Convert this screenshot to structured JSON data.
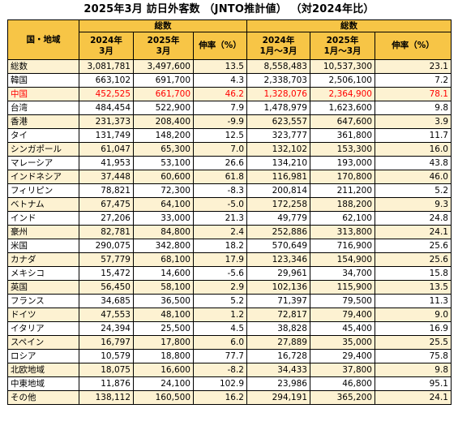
{
  "title": "2025年3月 訪日外客数 （JNTO推計値） （対2024年比）",
  "headers": {
    "region": "国・地域",
    "total": "総数",
    "col_2024_mar_line1": "2024年",
    "col_2024_mar_line2": "3月",
    "col_2025_mar_line1": "2025年",
    "col_2025_mar_line2": "3月",
    "growth": "伸率（%）",
    "col_2024_ytd_line1": "2024年",
    "col_2024_ytd_line2": "1月～3月",
    "col_2025_ytd_line1": "2025年",
    "col_2025_ytd_line2": "1月～3月"
  },
  "rows": [
    [
      "総数",
      "3,081,781",
      "3,497,600",
      "13.5",
      "8,558,483",
      "10,537,300",
      "23.1"
    ],
    [
      "韓国",
      "663,102",
      "691,700",
      "4.3",
      "2,338,703",
      "2,506,100",
      "7.2"
    ],
    [
      "中国",
      "452,525",
      "661,700",
      "46.2",
      "1,328,076",
      "2,364,900",
      "78.1"
    ],
    [
      "台湾",
      "484,454",
      "522,900",
      "7.9",
      "1,478,979",
      "1,623,600",
      "9.8"
    ],
    [
      "香港",
      "231,373",
      "208,400",
      "-9.9",
      "623,557",
      "647,600",
      "3.9"
    ],
    [
      "タイ",
      "131,749",
      "148,200",
      "12.5",
      "323,777",
      "361,800",
      "11.7"
    ],
    [
      "シンガポール",
      "61,047",
      "65,300",
      "7.0",
      "132,102",
      "153,300",
      "16.0"
    ],
    [
      "マレーシア",
      "41,953",
      "53,100",
      "26.6",
      "134,210",
      "193,000",
      "43.8"
    ],
    [
      "インドネシア",
      "37,448",
      "60,600",
      "61.8",
      "116,981",
      "170,800",
      "46.0"
    ],
    [
      "フィリピン",
      "78,821",
      "72,300",
      "-8.3",
      "200,814",
      "211,200",
      "5.2"
    ],
    [
      "ベトナム",
      "67,475",
      "64,100",
      "-5.0",
      "172,258",
      "188,200",
      "9.3"
    ],
    [
      "インド",
      "27,206",
      "33,000",
      "21.3",
      "49,779",
      "62,100",
      "24.8"
    ],
    [
      "豪州",
      "82,781",
      "84,800",
      "2.4",
      "252,886",
      "313,800",
      "24.1"
    ],
    [
      "米国",
      "290,075",
      "342,800",
      "18.2",
      "570,649",
      "716,900",
      "25.6"
    ],
    [
      "カナダ",
      "57,779",
      "68,100",
      "17.9",
      "123,346",
      "154,900",
      "25.6"
    ],
    [
      "メキシコ",
      "15,472",
      "14,600",
      "-5.6",
      "29,961",
      "34,700",
      "15.8"
    ],
    [
      "英国",
      "56,450",
      "58,100",
      "2.9",
      "102,136",
      "115,900",
      "13.5"
    ],
    [
      "フランス",
      "34,685",
      "36,500",
      "5.2",
      "71,397",
      "79,500",
      "11.3"
    ],
    [
      "ドイツ",
      "47,553",
      "48,100",
      "1.2",
      "72,817",
      "79,400",
      "9.0"
    ],
    [
      "イタリア",
      "24,394",
      "25,500",
      "4.5",
      "38,828",
      "45,400",
      "16.9"
    ],
    [
      "スペイン",
      "16,797",
      "17,800",
      "6.0",
      "27,889",
      "35,000",
      "25.5"
    ],
    [
      "ロシア",
      "10,579",
      "18,800",
      "77.7",
      "16,728",
      "29,400",
      "75.8"
    ],
    [
      "北欧地域",
      "18,075",
      "16,600",
      "-8.2",
      "34,433",
      "37,800",
      "9.8"
    ],
    [
      "中東地域",
      "11,876",
      "24,100",
      "102.9",
      "23,986",
      "46,800",
      "95.1"
    ],
    [
      "その他",
      "138,112",
      "160,500",
      "16.2",
      "294,191",
      "365,200",
      "24.1"
    ]
  ],
  "highlight_row": 2,
  "colors": {
    "header_bg": "#f7c546",
    "alt_row_bg": "#fdf2d2",
    "highlight_text": "#ff0000",
    "border": "#000000"
  }
}
